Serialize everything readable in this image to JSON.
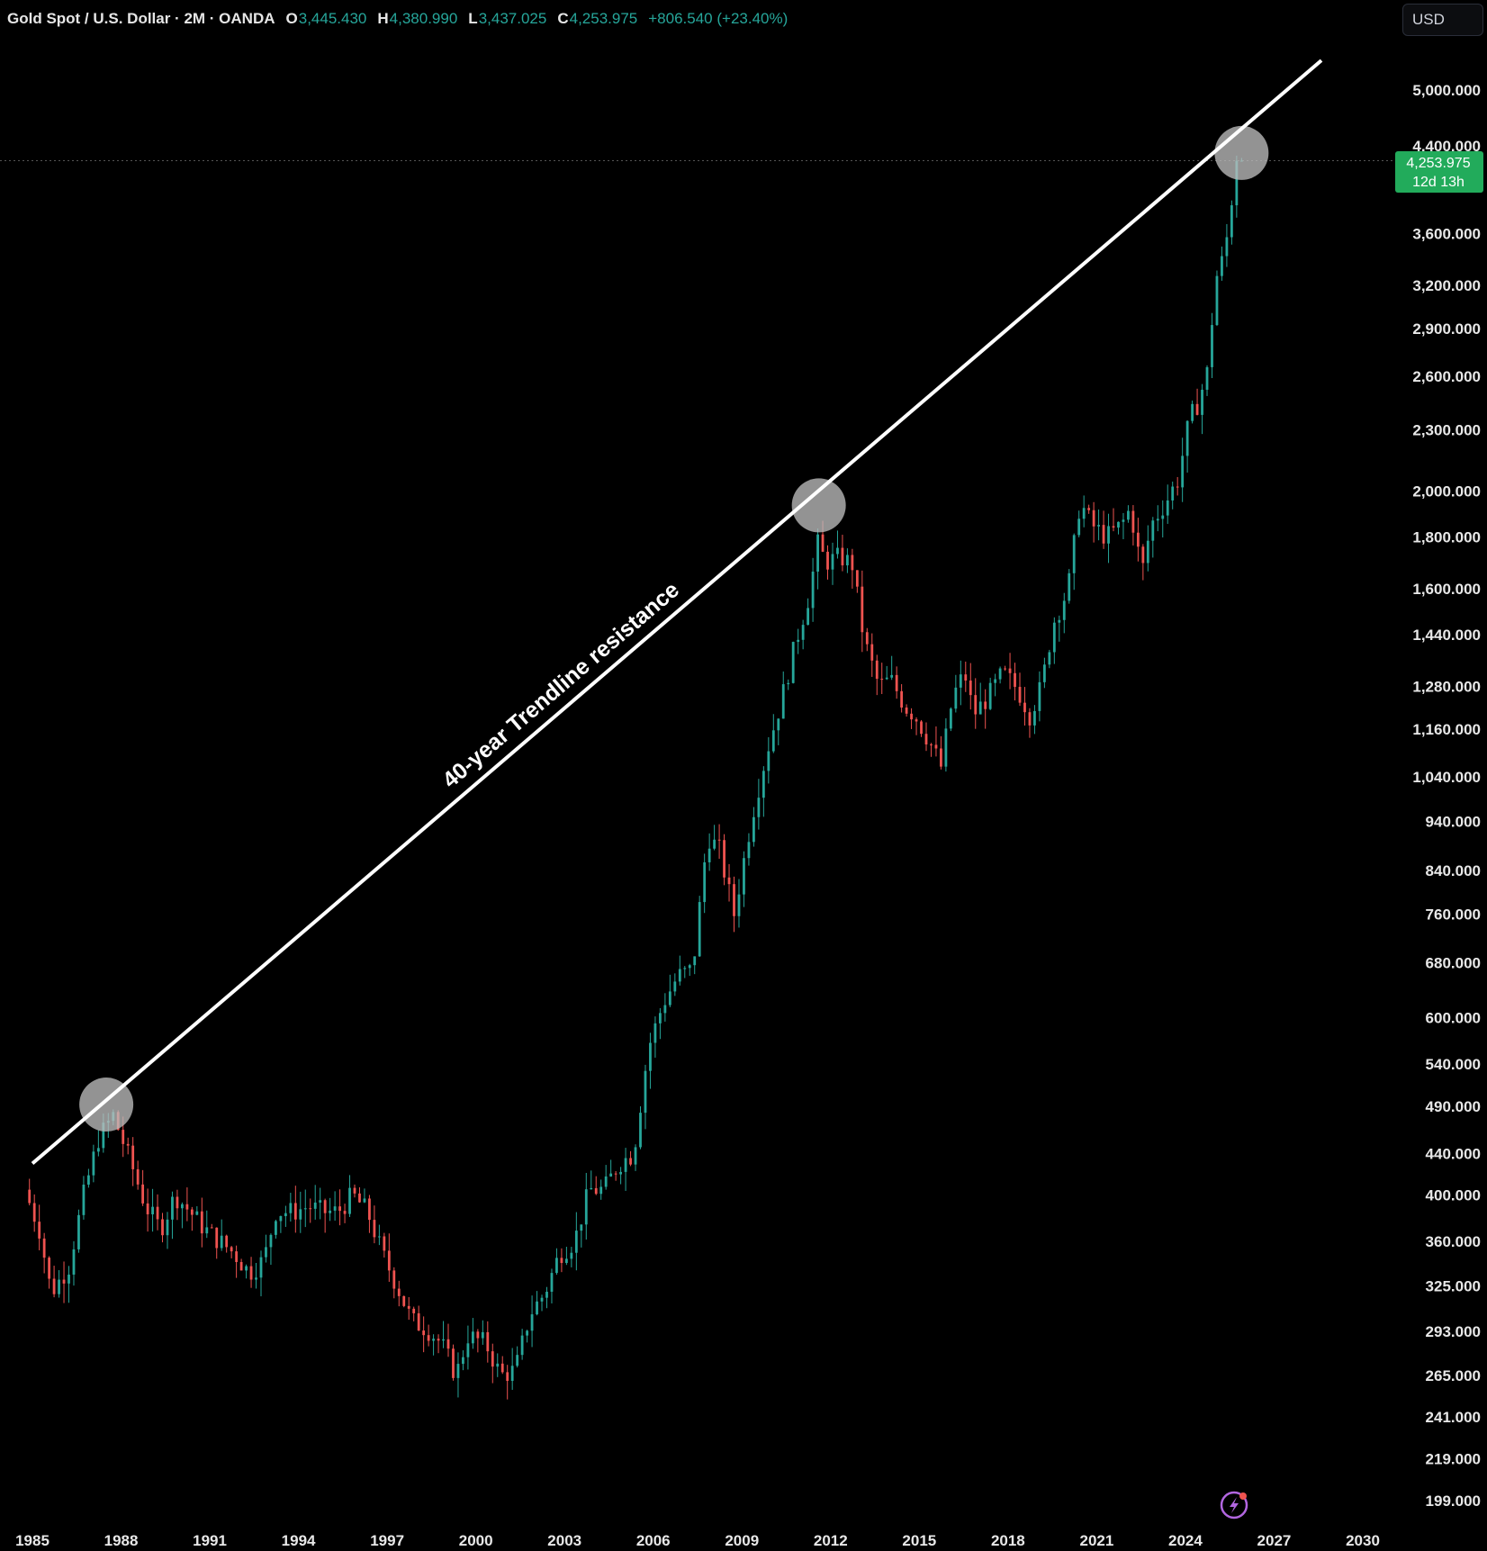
{
  "header": {
    "symbol": "Gold Spot / U.S. Dollar · 2M · OANDA",
    "open_label": "O",
    "open": "3,445.430",
    "high_label": "H",
    "high": "4,380.990",
    "low_label": "L",
    "low": "3,437.025",
    "close_label": "C",
    "close": "4,253.975",
    "change": "+806.540 (+23.40%)"
  },
  "currency_button": "USD",
  "price_tag": {
    "price": "4,253.975",
    "countdown": "12d 13h"
  },
  "colors": {
    "up": "#26a69a",
    "down": "#ef5350",
    "tag": "#22ab5b",
    "trendline": "#ffffff",
    "circle": "#bdbdbd",
    "lightning": "#b266e0"
  },
  "icons": {
    "bottom": "lightning-icon"
  },
  "chart_data": {
    "type": "candlestick",
    "y_scale": "log",
    "y_ticks": [
      "5,000.000",
      "4,400.000",
      "3,600.000",
      "3,200.000",
      "2,900.000",
      "2,600.000",
      "2,300.000",
      "2,000.000",
      "1,800.000",
      "1,600.000",
      "1,440.000",
      "1,280.000",
      "1,160.000",
      "1,040.000",
      "940.000",
      "840.000",
      "760.000",
      "680.000",
      "600.000",
      "540.000",
      "490.000",
      "440.000",
      "400.000",
      "360.000",
      "325.000",
      "293.000",
      "265.000",
      "241.000",
      "219.000",
      "199.000"
    ],
    "x_ticks": [
      "1985",
      "1988",
      "1991",
      "1994",
      "1997",
      "2000",
      "2003",
      "2006",
      "2009",
      "2012",
      "2015",
      "2018",
      "2021",
      "2024",
      "2027",
      "2030"
    ],
    "xlim": [
      1984.8,
      2030.3
    ],
    "ylim": [
      180,
      6000
    ],
    "current_price": 4253.975,
    "trendline": {
      "label": "40-year Trendline resistance",
      "start": [
        1985.0,
        430
      ],
      "end": [
        2028.6,
        5350
      ]
    },
    "touch_points": [
      [
        1987.5,
        492
      ],
      [
        2011.6,
        1935
      ],
      [
        2025.9,
        4330
      ]
    ],
    "anchors": [
      [
        1984.9,
        405
      ],
      [
        1985.4,
        370
      ],
      [
        1985.8,
        320
      ],
      [
        1986.4,
        340
      ],
      [
        1986.9,
        400
      ],
      [
        1987.4,
        455
      ],
      [
        1987.9,
        480
      ],
      [
        1988.5,
        430
      ],
      [
        1989.0,
        390
      ],
      [
        1989.5,
        370
      ],
      [
        1990.0,
        400
      ],
      [
        1990.5,
        385
      ],
      [
        1991.0,
        370
      ],
      [
        1991.5,
        360
      ],
      [
        1992.0,
        350
      ],
      [
        1992.5,
        335
      ],
      [
        1993.0,
        345
      ],
      [
        1993.4,
        385
      ],
      [
        1994.0,
        385
      ],
      [
        1994.5,
        390
      ],
      [
        1995.0,
        385
      ],
      [
        1995.5,
        385
      ],
      [
        1996.0,
        400
      ],
      [
        1996.5,
        385
      ],
      [
        1997.0,
        350
      ],
      [
        1997.5,
        325
      ],
      [
        1998.0,
        300
      ],
      [
        1998.5,
        295
      ],
      [
        1999.0,
        285
      ],
      [
        1999.5,
        265
      ],
      [
        1999.9,
        290
      ],
      [
        2000.5,
        285
      ],
      [
        2001.0,
        265
      ],
      [
        2001.5,
        268
      ],
      [
        2002.0,
        305
      ],
      [
        2002.5,
        320
      ],
      [
        2003.0,
        350
      ],
      [
        2003.5,
        360
      ],
      [
        2004.0,
        405
      ],
      [
        2004.5,
        405
      ],
      [
        2005.0,
        430
      ],
      [
        2005.5,
        440
      ],
      [
        2006.0,
        560
      ],
      [
        2006.5,
        620
      ],
      [
        2007.0,
        660
      ],
      [
        2007.5,
        670
      ],
      [
        2008.0,
        910
      ],
      [
        2008.4,
        880
      ],
      [
        2008.9,
        760
      ],
      [
        2009.5,
        950
      ],
      [
        2010.0,
        1100
      ],
      [
        2010.5,
        1240
      ],
      [
        2011.0,
        1420
      ],
      [
        2011.5,
        1600
      ],
      [
        2011.7,
        1780
      ],
      [
        2012.0,
        1700
      ],
      [
        2012.5,
        1720
      ],
      [
        2012.9,
        1690
      ],
      [
        2013.3,
        1420
      ],
      [
        2013.8,
        1280
      ],
      [
        2014.2,
        1300
      ],
      [
        2014.7,
        1220
      ],
      [
        2015.0,
        1200
      ],
      [
        2015.5,
        1130
      ],
      [
        2015.9,
        1065
      ],
      [
        2016.3,
        1250
      ],
      [
        2016.7,
        1320
      ],
      [
        2017.0,
        1200
      ],
      [
        2017.5,
        1250
      ],
      [
        2018.0,
        1320
      ],
      [
        2018.5,
        1270
      ],
      [
        2018.9,
        1200
      ],
      [
        2019.3,
        1280
      ],
      [
        2019.7,
        1480
      ],
      [
        2020.2,
        1600
      ],
      [
        2020.6,
        1950
      ],
      [
        2021.0,
        1850
      ],
      [
        2021.5,
        1800
      ],
      [
        2022.0,
        1850
      ],
      [
        2022.3,
        1920
      ],
      [
        2022.7,
        1660
      ],
      [
        2023.0,
        1850
      ],
      [
        2023.5,
        1950
      ],
      [
        2023.9,
        2050
      ],
      [
        2024.3,
        2350
      ],
      [
        2024.6,
        2450
      ],
      [
        2024.9,
        2620
      ],
      [
        2025.2,
        3250
      ],
      [
        2025.5,
        3440
      ],
      [
        2025.9,
        4254
      ]
    ]
  }
}
